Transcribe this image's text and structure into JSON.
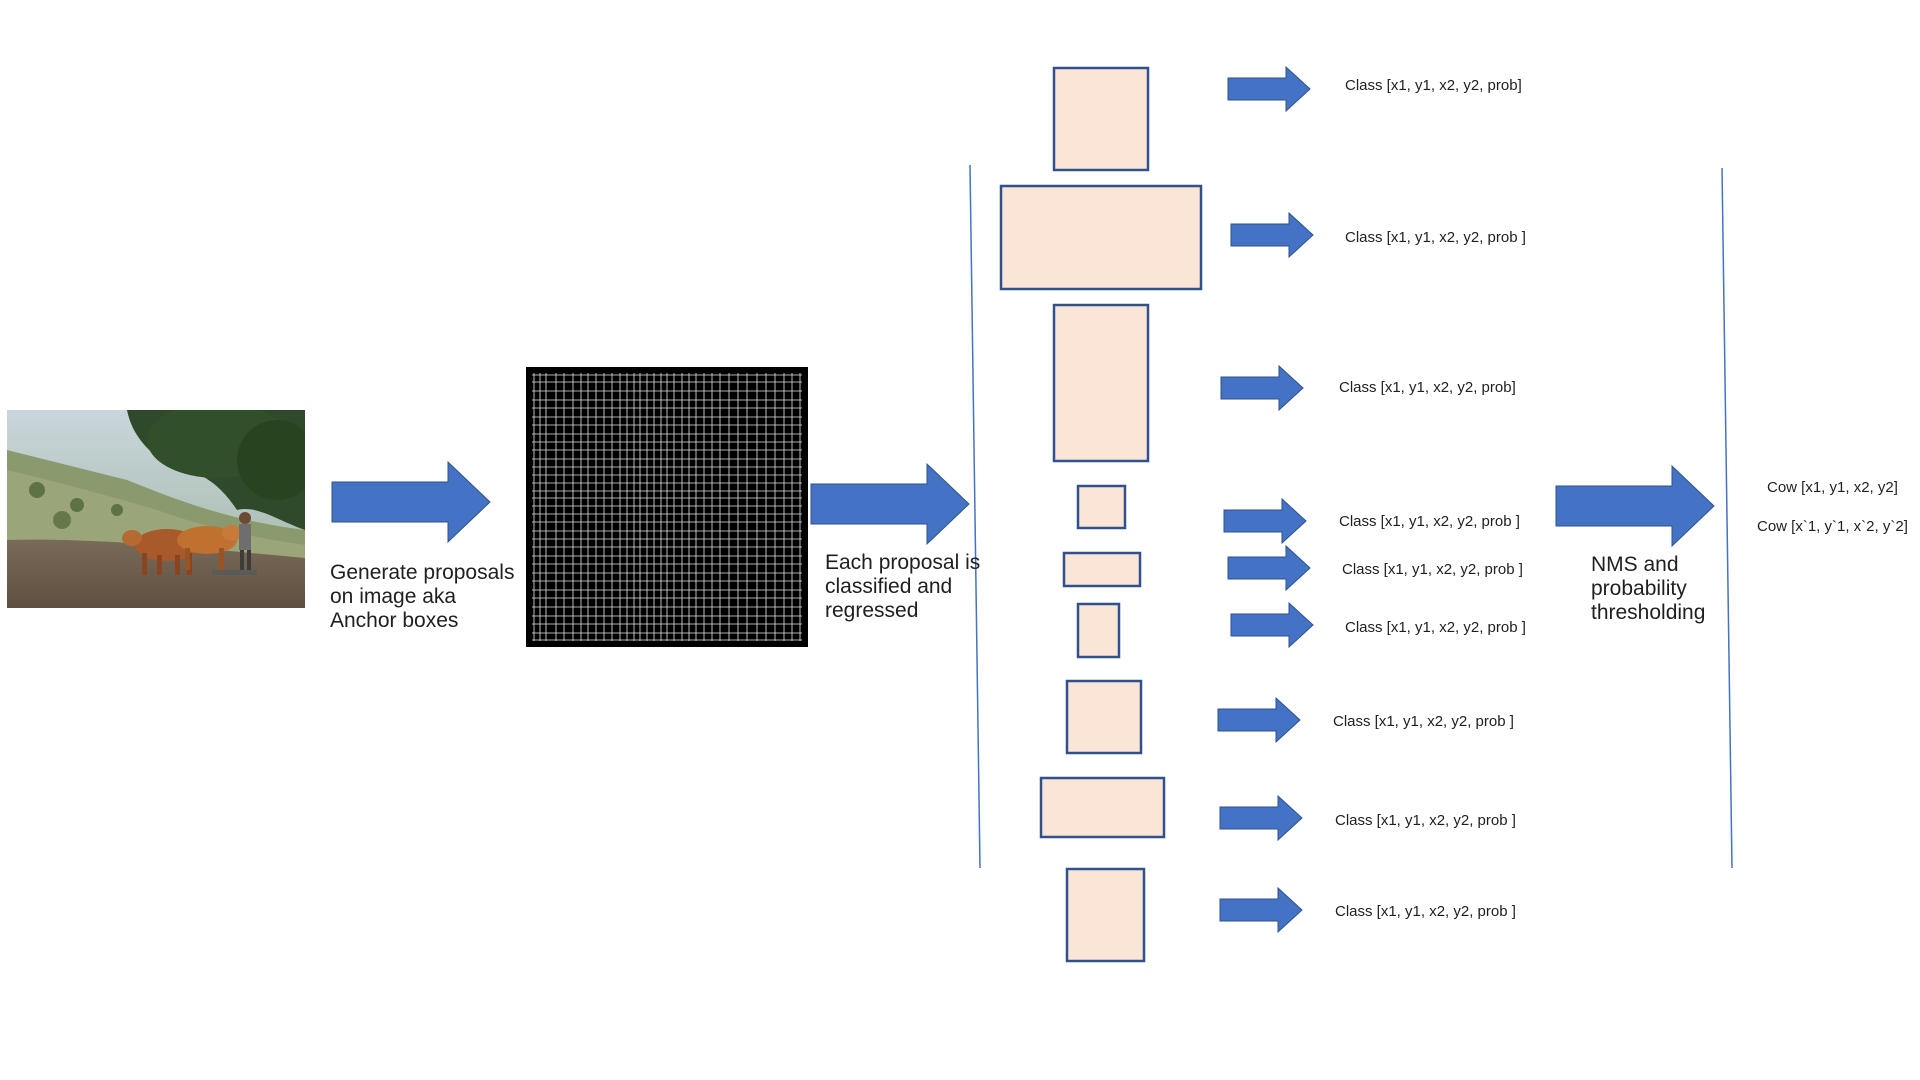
{
  "steps": {
    "generate_label": "Generate proposals\non image aka\nAnchor boxes",
    "classify_label": "Each proposal is\nclassified and\nregressed",
    "nms_label": "NMS and\nprobability\nthresholding"
  },
  "input_image": {
    "subject": "field-with-two-oxen-and-farmer"
  },
  "proposals": [
    {
      "text": "Class [x1, y1, x2, y2, prob]"
    },
    {
      "text": "Class [x1, y1, x2, y2, prob ]"
    },
    {
      "text": "Class [x1, y1, x2, y2, prob]"
    },
    {
      "text": "Class [x1, y1, x2, y2, prob ]"
    },
    {
      "text": "Class [x1, y1, x2, y2, prob ]"
    },
    {
      "text": "Class [x1, y1, x2, y2, prob ]"
    },
    {
      "text": "Class [x1, y1, x2, y2, prob ]"
    },
    {
      "text": "Class [x1, y1, x2, y2, prob ]"
    },
    {
      "text": "Class [x1, y1, x2, y2, prob ]"
    }
  ],
  "outputs": [
    {
      "text": "Cow [x1, y1, x2, y2]"
    },
    {
      "text": "Cow [x`1, y`1, x`2, y`2]"
    }
  ],
  "colors": {
    "arrow": "#4472c4",
    "arrow_stroke": "#2f528f",
    "box_fill": "#fbe5d6",
    "box_stroke": "#2f528f",
    "divider": "#4472c4",
    "grid_bg": "#000000",
    "grid_line": "#ffffff"
  }
}
